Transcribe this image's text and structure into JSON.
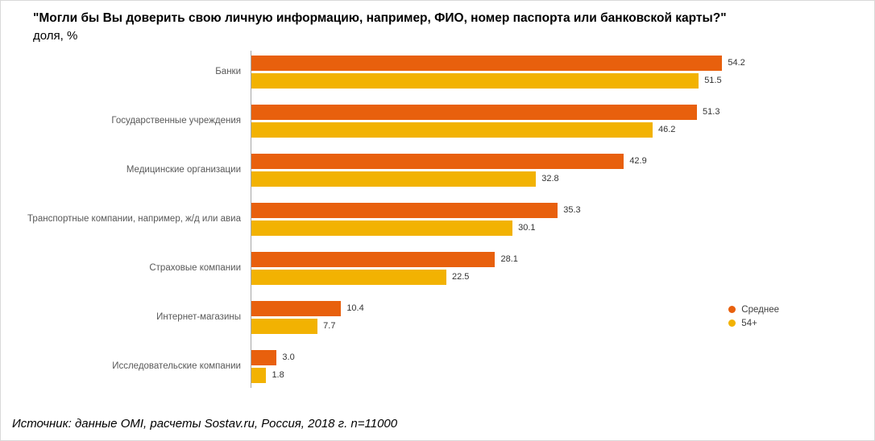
{
  "header": {
    "title": "\"Могли бы Вы доверить свою личную информацию, например, ФИО, номер паспорта или банковской карты?\"",
    "subtitle": "доля, %"
  },
  "footer": {
    "source": "Источник: данные OMI, расчеты Sostav.ru, Россия, 2018 г. n=11000"
  },
  "colors": {
    "series_average": "#E8600D",
    "series_54plus": "#F2B202",
    "axis_line": "#a6a6a6",
    "category_label": "#595959",
    "value_label": "#333333"
  },
  "chart_data": {
    "type": "bar",
    "orientation": "horizontal",
    "title": "\"Могли бы Вы доверить свою личную информацию, например, ФИО, номер паспорта или банковской карты?\"",
    "subtitle": "доля, %",
    "xlabel": "",
    "ylabel": "",
    "xlim": [
      0,
      56
    ],
    "grid": false,
    "legend_position": "bottom-right",
    "value_labels": true,
    "categories": [
      "Банки",
      "Государственные учреждения",
      "Медицинские организации",
      "Транспортные компании, например, ж/д или авиа",
      "Страховые компании",
      "Интернет-магазины",
      "Исследовательские компании"
    ],
    "series": [
      {
        "name": "Среднее",
        "color": "#E8600D",
        "values": [
          54.2,
          51.3,
          42.9,
          35.3,
          28.1,
          10.4,
          3.0
        ]
      },
      {
        "name": "54+",
        "color": "#F2B202",
        "values": [
          51.5,
          46.2,
          32.8,
          30.1,
          22.5,
          7.7,
          1.8
        ]
      }
    ]
  }
}
